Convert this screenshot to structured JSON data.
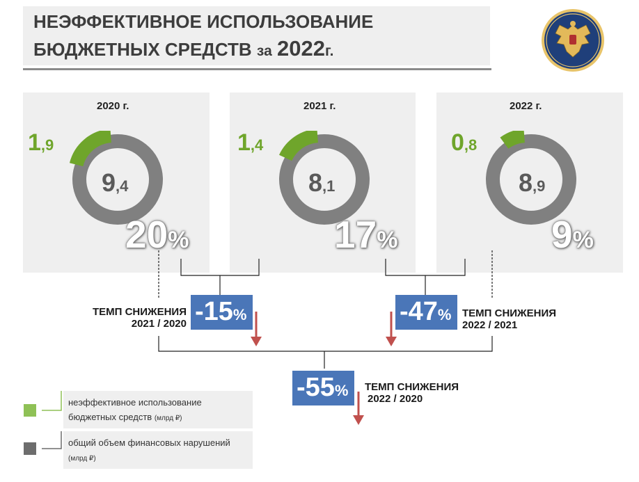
{
  "title": {
    "line1": "НЕЭФФЕКТИВНОЕ ИСПОЛЬЗОВАНИЕ",
    "line2_main": "БЮДЖЕТНЫХ СРЕДСТВ",
    "line2_za": "за",
    "line2_year": "2022",
    "line2_g": "г."
  },
  "colors": {
    "green": "#6fa52b",
    "gray": "#808080",
    "blue": "#4a76b8",
    "arrow": "#c0504d"
  },
  "years": [
    {
      "label": "2020 г.",
      "green_int": "1",
      "green_dec": ",9",
      "gray_int": "9",
      "gray_dec": ",4",
      "pct": "20",
      "pct_sign": "%",
      "share": 0.2
    },
    {
      "label": "2021 г.",
      "green_int": "1",
      "green_dec": ",4",
      "gray_int": "8",
      "gray_dec": ",1",
      "pct": "17",
      "pct_sign": "%",
      "share": 0.17
    },
    {
      "label": "2022 г.",
      "green_int": "0",
      "green_dec": ",8",
      "gray_int": "8",
      "gray_dec": ",9",
      "pct": "9",
      "pct_sign": "%",
      "share": 0.09
    }
  ],
  "rates": [
    {
      "value": "-15",
      "sign": "%",
      "label1": "ТЕМП СНИЖЕНИЯ",
      "label2": "2021 / 2020"
    },
    {
      "value": "-47",
      "sign": "%",
      "label1": "ТЕМП СНИЖЕНИЯ",
      "label2": "2022 / 2021"
    },
    {
      "value": "-55",
      "sign": "%",
      "label1": "ТЕМП СНИЖЕНИЯ",
      "label2": "2022 / 2020"
    }
  ],
  "legend": [
    {
      "text1": "неэффективное использование",
      "text2": "бюджетных средств",
      "unit": "(млрд ₽)",
      "color": "#8fc156"
    },
    {
      "text1": "общий объем финансовых нарушений",
      "text2": "",
      "unit": "(млрд ₽)",
      "color": "#6d6d6d"
    }
  ],
  "emblem_icon": "eagle-emblem-icon"
}
